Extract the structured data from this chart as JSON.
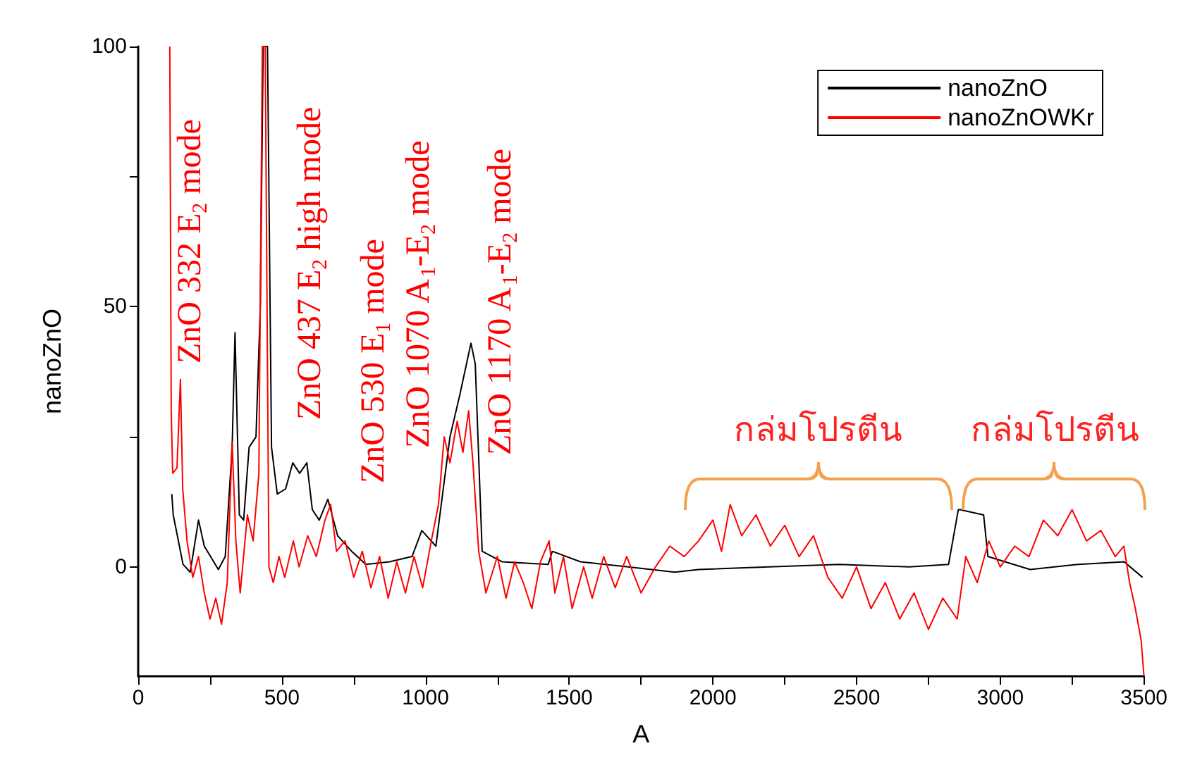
{
  "chart_data": {
    "type": "line",
    "xlabel": "A",
    "ylabel": "nanoZnO",
    "xlim": [
      0,
      3500
    ],
    "xticks": [
      0,
      {
        "value": 250,
        "label": null
      },
      500,
      {
        "value": 750,
        "label": null
      },
      1000,
      {
        "value": 1250,
        "label": null
      },
      1500,
      {
        "value": 1750,
        "label": null
      },
      2000,
      {
        "value": 2250,
        "label": null
      },
      2500,
      {
        "value": 2750,
        "label": null
      },
      3000,
      {
        "value": 3250,
        "label": null
      },
      3500
    ],
    "ylim": [
      -21,
      100
    ],
    "yticks": [
      0,
      {
        "value": 25,
        "label": null
      },
      50,
      {
        "value": 75,
        "label": null
      },
      100
    ],
    "grid": false,
    "legend": "top right",
    "marker": "none",
    "line_style": "solid",
    "series": [
      {
        "name": "nanoZnO",
        "color": "#000000",
        "x": [
          117,
          122,
          156,
          181,
          210,
          230,
          279,
          303,
          327,
          337,
          352,
          367,
          386,
          410,
          425,
          435,
          450,
          464,
          484,
          513,
          538,
          562,
          587,
          606,
          630,
          660,
          694,
          743,
          792,
          875,
          953,
          987,
          1036,
          1085,
          1119,
          1158,
          1173,
          1197,
          1266,
          1427,
          1441,
          1539,
          1705,
          1867,
          1950,
          2194,
          2439,
          2683,
          2820,
          2854,
          2860,
          2942,
          2957,
          3104,
          3270,
          3431,
          3495
        ],
        "values": [
          14,
          10,
          0.5,
          -1,
          9,
          4,
          -0.5,
          2,
          23,
          45,
          10,
          9,
          23,
          25,
          50,
          100,
          100,
          23,
          14,
          15,
          20,
          18,
          20,
          11,
          9,
          13,
          6,
          3,
          0.5,
          1,
          2,
          7,
          4,
          25,
          33,
          43,
          39,
          3,
          1,
          0.5,
          3,
          1,
          0,
          -1,
          -0.5,
          0,
          0.5,
          0,
          0.5,
          11,
          11,
          10,
          2,
          -0.5,
          0.5,
          1,
          -2
        ]
      },
      {
        "name": "nanoZnOWKr",
        "color": "#ff0000",
        "x": [
          110,
          115,
          120,
          135,
          147,
          155,
          170,
          190,
          210,
          230,
          250,
          270,
          290,
          310,
          327,
          340,
          355,
          380,
          400,
          420,
          432,
          442,
          455,
          470,
          490,
          510,
          540,
          560,
          590,
          620,
          650,
          670,
          690,
          720,
          750,
          780,
          810,
          840,
          870,
          900,
          930,
          960,
          990,
          1020,
          1045,
          1065,
          1085,
          1110,
          1130,
          1150,
          1165,
          1185,
          1210,
          1250,
          1280,
          1310,
          1340,
          1370,
          1400,
          1430,
          1450,
          1480,
          1510,
          1550,
          1580,
          1620,
          1660,
          1700,
          1750,
          1800,
          1850,
          1900,
          1950,
          2000,
          2030,
          2060,
          2100,
          2150,
          2200,
          2250,
          2300,
          2350,
          2400,
          2450,
          2500,
          2550,
          2600,
          2650,
          2700,
          2750,
          2800,
          2850,
          2880,
          2920,
          2960,
          3000,
          3050,
          3100,
          3150,
          3200,
          3250,
          3300,
          3350,
          3400,
          3430,
          3450,
          3470,
          3490,
          3500
        ],
        "values": [
          100,
          30,
          18,
          19,
          36,
          15,
          5,
          -2,
          2,
          -5,
          -10,
          -6,
          -11,
          -3,
          24,
          5,
          -5,
          10,
          5,
          18,
          100,
          100,
          0,
          -3,
          2,
          -2,
          5,
          0,
          6,
          2,
          9,
          12,
          3,
          5,
          -2,
          3,
          -4,
          2,
          -6,
          1,
          -5,
          2,
          -4,
          5,
          12,
          25,
          20,
          28,
          22,
          30,
          20,
          3,
          -5,
          2,
          -6,
          1,
          -3,
          -8,
          1,
          5,
          -5,
          2,
          -8,
          0,
          -6,
          2,
          -4,
          2,
          -5,
          0,
          4,
          2,
          5,
          9,
          3,
          12,
          6,
          10,
          4,
          8,
          2,
          6,
          -2,
          -6,
          0,
          -8,
          -3,
          -10,
          -5,
          -12,
          -6,
          -10,
          2,
          -3,
          5,
          0,
          4,
          2,
          9,
          6,
          11,
          5,
          7,
          2,
          4,
          -3,
          -8,
          -14,
          -21
        ]
      }
    ],
    "annotations": [
      "ZnO 332 E$_{2}$ mode",
      "ZnO 437 E$_{2}$ high mode",
      "ZnO 530 E$_{1}$ mode",
      "ZnO 1070 A$_{1}$-E$_{2}$ mode",
      "ZnO 1170 A$_{1}$-E$_{2}$ mode",
      "กล่มโปรตีน",
      "กล่มโปรตีน"
    ]
  }
}
